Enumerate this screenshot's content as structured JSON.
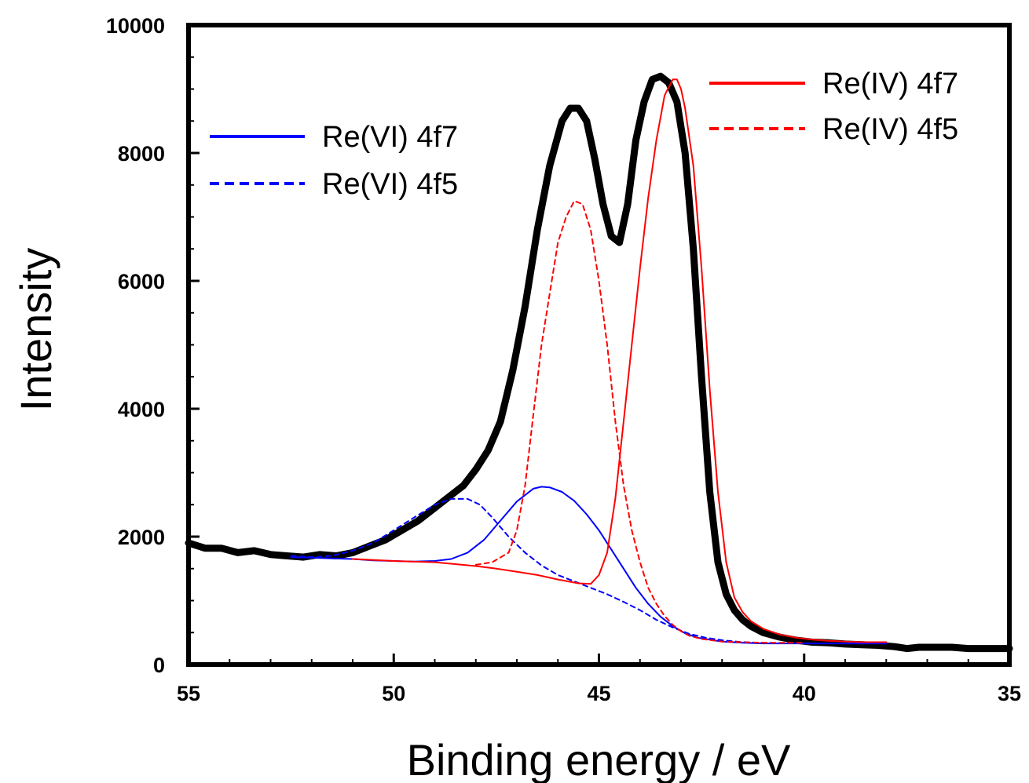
{
  "chart_data": {
    "type": "line",
    "xlabel": "Binding energy / eV",
    "ylabel": "Intensity",
    "xlim": [
      55,
      35
    ],
    "ylim": [
      0,
      10000
    ],
    "x_reversed": true,
    "grid": false,
    "x_ticks": [
      "55",
      "50",
      "45",
      "40",
      "35"
    ],
    "y_ticks": [
      "0",
      "2000",
      "4000",
      "6000",
      "8000",
      "10000"
    ],
    "legends": [
      {
        "placement": "upper-left",
        "entries": [
          {
            "label": "Re(VI) 4f7",
            "color": "#0000ff",
            "dash": "solid"
          },
          {
            "label": "Re(VI) 4f5",
            "color": "#0000ff",
            "dash": "dashed"
          }
        ]
      },
      {
        "placement": "top-right",
        "entries": [
          {
            "label": "Re(IV) 4f7",
            "color": "#ff0000",
            "dash": "solid"
          },
          {
            "label": "Re(IV) 4f5",
            "color": "#ff0000",
            "dash": "dashed"
          }
        ]
      }
    ],
    "series": [
      {
        "color": "#000000",
        "dash": "solid",
        "weight": "thick",
        "x": [
          55,
          54.6,
          54.2,
          53.8,
          53.4,
          53,
          52.6,
          52.2,
          51.8,
          51.4,
          51,
          50.6,
          50.2,
          49.8,
          49.4,
          49,
          48.6,
          48.3,
          48,
          47.7,
          47.4,
          47.1,
          46.8,
          46.5,
          46.2,
          45.9,
          45.7,
          45.5,
          45.3,
          45.1,
          44.9,
          44.7,
          44.5,
          44.3,
          44.1,
          43.9,
          43.7,
          43.5,
          43.3,
          43.1,
          42.9,
          42.7,
          42.5,
          42.3,
          42.1,
          41.9,
          41.7,
          41.5,
          41.3,
          41,
          40.6,
          40.2,
          39.8,
          39.4,
          39,
          38.6,
          38.2,
          37.8,
          37.5,
          37.2,
          36.8,
          36.4,
          36,
          35.5,
          35
        ],
        "y": [
          1900,
          1820,
          1820,
          1750,
          1780,
          1720,
          1700,
          1680,
          1720,
          1700,
          1750,
          1850,
          1950,
          2100,
          2250,
          2450,
          2650,
          2800,
          3050,
          3350,
          3800,
          4600,
          5600,
          6800,
          7800,
          8500,
          8700,
          8700,
          8500,
          7900,
          7200,
          6700,
          6600,
          7200,
          8200,
          8800,
          9150,
          9200,
          9100,
          8800,
          8000,
          6500,
          4500,
          2700,
          1600,
          1100,
          850,
          700,
          600,
          500,
          430,
          380,
          350,
          340,
          320,
          310,
          300,
          280,
          250,
          270,
          270,
          270,
          250,
          250,
          250
        ]
      },
      {
        "name": "Re(VI) 4f7",
        "color": "#0000ff",
        "dash": "solid",
        "x": [
          52.5,
          52,
          51.5,
          51,
          50.5,
          50,
          49.5,
          49,
          48.6,
          48.2,
          47.8,
          47.4,
          47,
          46.6,
          46.4,
          46.2,
          45.9,
          45.6,
          45.3,
          45,
          44.7,
          44.4,
          44.1,
          43.8,
          43.5,
          43.2,
          42.9,
          42.6,
          42,
          41.5,
          41,
          40.5,
          40,
          39.5,
          39,
          38.5,
          38
        ],
        "y": [
          1680,
          1670,
          1660,
          1650,
          1630,
          1620,
          1610,
          1620,
          1650,
          1750,
          1950,
          2250,
          2550,
          2750,
          2780,
          2770,
          2700,
          2560,
          2350,
          2100,
          1800,
          1500,
          1200,
          950,
          750,
          600,
          490,
          420,
          360,
          340,
          330,
          330,
          330,
          330,
          330,
          330,
          330
        ]
      },
      {
        "name": "Re(VI) 4f5",
        "color": "#0000ff",
        "dash": "dashed",
        "x": [
          52.5,
          52,
          51.5,
          51,
          50.5,
          50,
          49.5,
          49,
          48.6,
          48.2,
          47.9,
          47.6,
          47.2,
          46.8,
          46.4,
          46,
          45.6,
          45.2,
          44.8,
          44.4,
          44,
          43.6,
          43.2,
          42.8,
          42.4,
          42,
          41.5,
          41,
          40,
          39,
          38
        ],
        "y": [
          1700,
          1680,
          1700,
          1780,
          1900,
          2100,
          2300,
          2500,
          2590,
          2590,
          2500,
          2300,
          2000,
          1750,
          1550,
          1400,
          1300,
          1200,
          1100,
          980,
          850,
          700,
          580,
          480,
          420,
          380,
          350,
          340,
          330,
          330,
          330
        ]
      },
      {
        "name": "Re(IV) 4f7",
        "color": "#ff0000",
        "dash": "solid",
        "x": [
          51,
          50,
          49,
          48.5,
          48,
          47.5,
          47,
          46.5,
          46,
          45.5,
          45.2,
          45,
          44.8,
          44.6,
          44.4,
          44.2,
          44,
          43.8,
          43.6,
          43.4,
          43.2,
          43.1,
          43,
          42.9,
          42.7,
          42.5,
          42.3,
          42.1,
          41.9,
          41.7,
          41.5,
          41.3,
          41,
          40.6,
          40.2,
          39.8,
          39.4,
          39,
          38.5,
          38
        ],
        "y": [
          1650,
          1620,
          1600,
          1570,
          1540,
          1500,
          1450,
          1400,
          1330,
          1270,
          1260,
          1400,
          1750,
          2600,
          3800,
          5000,
          6200,
          7300,
          8200,
          8900,
          9150,
          9150,
          9000,
          8700,
          7800,
          6200,
          4300,
          2700,
          1600,
          1050,
          820,
          680,
          560,
          470,
          420,
          390,
          370,
          360,
          350,
          350
        ]
      },
      {
        "name": "Re(IV) 4f5",
        "color": "#ff0000",
        "dash": "dashed",
        "x": [
          48,
          47.6,
          47.2,
          47,
          46.8,
          46.6,
          46.4,
          46.2,
          46,
          45.8,
          45.6,
          45.4,
          45.2,
          45,
          44.8,
          44.6,
          44.4,
          44.2,
          44,
          43.8,
          43.6,
          43.4,
          43.2,
          43,
          42.8,
          42.5,
          42,
          41.5,
          41,
          40.5,
          40
        ],
        "y": [
          1560,
          1600,
          1750,
          2100,
          2800,
          3900,
          5000,
          5800,
          6600,
          7000,
          7250,
          7200,
          6800,
          6000,
          5000,
          3800,
          2800,
          2100,
          1600,
          1200,
          950,
          760,
          620,
          520,
          450,
          400,
          360,
          350,
          340,
          340,
          340
        ]
      }
    ]
  }
}
